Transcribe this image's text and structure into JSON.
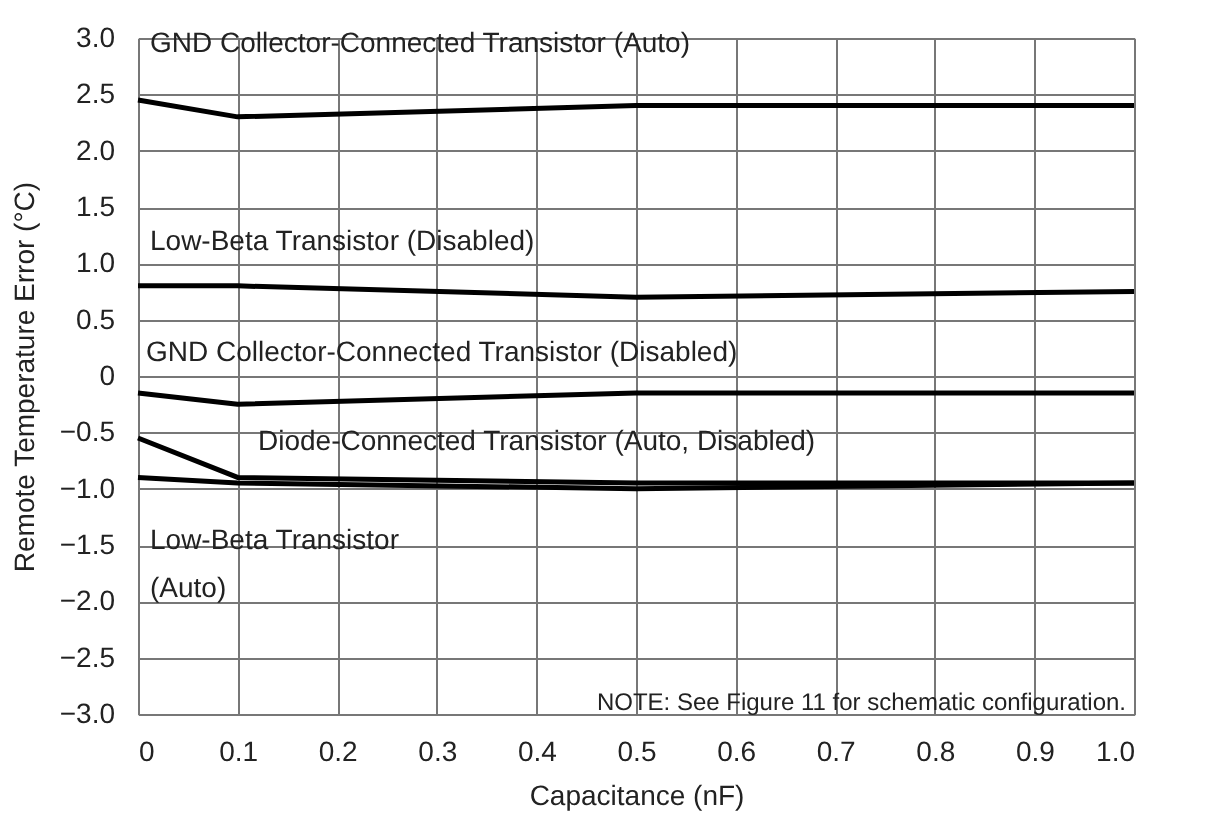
{
  "chart_data": {
    "type": "line",
    "xlabel": "Capacitance (nF)",
    "ylabel": "Remote Temperature Error (°C)",
    "x": [
      0,
      0.1,
      0.5,
      1.0
    ],
    "series": [
      {
        "name": "GND Collector-Connected Transistor (Auto)",
        "color": "#000000",
        "values": [
          2.45,
          2.3,
          2.4,
          2.4
        ]
      },
      {
        "name": "Low-Beta Transistor (Disabled)",
        "color": "#000000",
        "values": [
          0.8,
          0.8,
          0.7,
          0.75
        ]
      },
      {
        "name": "GND Collector-Connected Transistor (Disabled)",
        "color": "#000000",
        "values": [
          -0.15,
          -0.25,
          -0.15,
          -0.15
        ]
      },
      {
        "name": "Diode-Connected Transistor (Auto, Disabled)",
        "color": "#000000",
        "values": [
          -0.55,
          -0.9,
          -0.95,
          -0.95
        ]
      },
      {
        "name": "Low-Beta Transistor\n(Auto)",
        "color": "#000000",
        "values": [
          -0.9,
          -0.95,
          -1.0,
          -0.95
        ]
      }
    ],
    "annotations": [
      "NOTE: See Figure 11 for schematic configuration."
    ],
    "xlim": [
      0,
      1.0
    ],
    "xticks": [
      0,
      0.1,
      0.2,
      0.3,
      0.4,
      0.5,
      0.6,
      0.7,
      0.8,
      0.9,
      {
        "value": 1.0,
        "label": "1.0"
      }
    ],
    "ylim": [
      -3.0,
      3.0
    ],
    "yticks": [
      {
        "value": -3.0,
        "label": "−3.0"
      },
      {
        "value": -2.5,
        "label": "−2.5"
      },
      {
        "value": -2.0,
        "label": "−2.0"
      },
      {
        "value": -1.5,
        "label": "−1.5"
      },
      {
        "value": -1.0,
        "label": "−1.0"
      },
      {
        "value": -0.5,
        "label": "−0.5"
      },
      0,
      0.5,
      {
        "value": 1.0,
        "label": "1.0"
      },
      1.5,
      {
        "value": 2.0,
        "label": "2.0"
      },
      2.5,
      {
        "value": 3.0,
        "label": "3.0"
      }
    ],
    "grid": true,
    "marker": "none",
    "line_style": "solid"
  }
}
